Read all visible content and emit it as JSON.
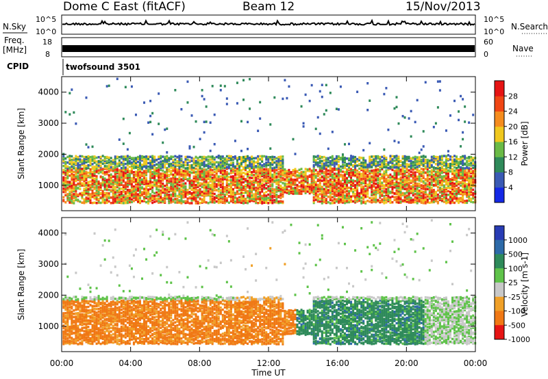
{
  "header": {
    "title": "Dome C East (fitACF)",
    "beam": "Beam 12",
    "date": "15/Nov/2013"
  },
  "panels": {
    "nsky": {
      "label": "N.Sky",
      "tick_top": "10^5",
      "tick_bottom": "10^0"
    },
    "nsearch": {
      "label": "N.Search",
      "tick_top": "10^5",
      "tick_bottom": "10^0"
    },
    "freq": {
      "label_line1": "Freq.",
      "label_line2": "[MHz]",
      "tick_top": "18",
      "tick_bottom": "8"
    },
    "nave": {
      "label": "Nave",
      "tick_top": "60",
      "tick_bottom": "0"
    },
    "cpid": {
      "label": "CPID",
      "value": "twofsound 3501"
    }
  },
  "chart_data": [
    {
      "type": "heatmap",
      "name": "power",
      "ylabel": "Slant Range [km]",
      "yticks": [
        "1000",
        "2000",
        "3000",
        "4000"
      ],
      "ylim": [
        180,
        4500
      ],
      "xlim": [
        0,
        24
      ],
      "colorbar": {
        "label": "Power [dB]",
        "ticks": [
          "4",
          "8",
          "12",
          "16",
          "20",
          "24",
          "28"
        ],
        "range": [
          0,
          32
        ],
        "colors": [
          "#1428e6",
          "#3a5ab4",
          "#2f8a5a",
          "#6aba46",
          "#f0c81e",
          "#f58c1e",
          "#f04614",
          "#e61414"
        ]
      }
    },
    {
      "type": "heatmap",
      "name": "velocity",
      "ylabel": "Slant Range [km]",
      "yticks": [
        "1000",
        "2000",
        "3000",
        "4000"
      ],
      "ylim": [
        180,
        4500
      ],
      "xlim": [
        0,
        24
      ],
      "colorbar": {
        "label": "Velocity [m s-1]",
        "ticks": [
          "1000",
          "500",
          "100",
          "25",
          "-25",
          "-100",
          "-500",
          "-1000"
        ],
        "colors": [
          "#283cb4",
          "#2d6aa8",
          "#2e8a5a",
          "#5fc34a",
          "#c8c8c8",
          "#f0a028",
          "#f07814",
          "#e61414"
        ]
      }
    }
  ],
  "xaxis": {
    "ticks": [
      "00:00",
      "04:00",
      "08:00",
      "12:00",
      "16:00",
      "20:00",
      "00:00"
    ],
    "label": "Time UT"
  }
}
